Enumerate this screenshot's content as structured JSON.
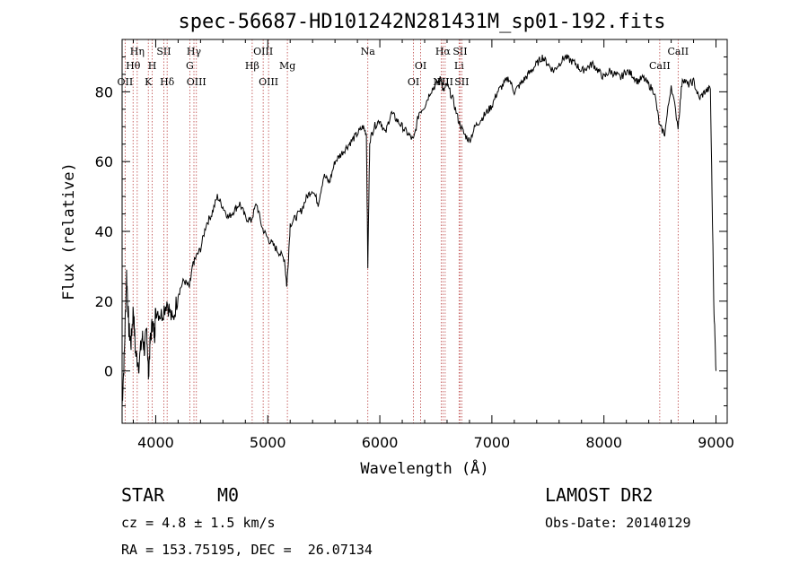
{
  "chart_data": {
    "type": "line",
    "title": "spec-56687-HD101242N281431M_sp01-192.fits",
    "xlabel": "Wavelength (Å)",
    "ylabel": "Flux (relative)",
    "xlim": [
      3700,
      9100
    ],
    "ylim": [
      -15,
      95
    ],
    "xticks": [
      "4000",
      "5000",
      "6000",
      "7000",
      "8000",
      "9000"
    ],
    "yticks": [
      "0",
      "20",
      "40",
      "60",
      "80"
    ],
    "grid": false,
    "series": [
      {
        "x": [
          3700,
          3720,
          3740,
          3760,
          3780,
          3800,
          3820,
          3850,
          3880,
          3900,
          3920,
          3935,
          3950,
          3970,
          3990,
          4000,
          4050,
          4100,
          4150,
          4200,
          4250,
          4300,
          4330,
          4350,
          4400,
          4450,
          4500,
          4550,
          4600,
          4650,
          4700,
          4750,
          4800,
          4850,
          4900,
          4950,
          5000,
          5050,
          5100,
          5150,
          5170,
          5200,
          5250,
          5300,
          5350,
          5400,
          5450,
          5500,
          5550,
          5600,
          5650,
          5700,
          5750,
          5800,
          5850,
          5880,
          5893,
          5910,
          5950,
          6000,
          6050,
          6100,
          6150,
          6200,
          6250,
          6300,
          6350,
          6400,
          6450,
          6500,
          6550,
          6563,
          6600,
          6650,
          6700,
          6750,
          6800,
          6850,
          6900,
          6950,
          7000,
          7050,
          7100,
          7150,
          7200,
          7250,
          7300,
          7350,
          7400,
          7450,
          7500,
          7550,
          7600,
          7650,
          7700,
          7750,
          7800,
          7850,
          7900,
          7950,
          8000,
          8050,
          8100,
          8150,
          8200,
          8250,
          8300,
          8350,
          8400,
          8450,
          8498,
          8542,
          8600,
          8662,
          8700,
          8750,
          8800,
          8850,
          8900,
          8950,
          8980,
          9000
        ],
        "values": [
          -10,
          5,
          28,
          12,
          8,
          18,
          5,
          2,
          10,
          6,
          12,
          -1,
          8,
          14,
          10,
          18,
          16,
          20,
          14,
          22,
          26,
          24,
          30,
          32,
          35,
          42,
          45,
          50,
          47,
          44,
          46,
          48,
          44,
          43,
          48,
          41,
          38,
          36,
          34,
          32,
          24,
          42,
          44,
          46,
          50,
          52,
          48,
          56,
          54,
          60,
          62,
          64,
          66,
          68,
          70,
          68,
          30,
          66,
          70,
          72,
          68,
          74,
          72,
          70,
          68,
          66,
          74,
          76,
          80,
          82,
          84,
          80,
          82,
          78,
          72,
          68,
          66,
          70,
          72,
          74,
          76,
          80,
          82,
          84,
          80,
          82,
          84,
          86,
          88,
          90,
          88,
          86,
          88,
          90,
          89,
          88,
          86,
          87,
          88,
          86,
          84,
          86,
          85,
          84,
          86,
          85,
          83,
          84,
          82,
          80,
          70,
          68,
          82,
          70,
          84,
          82,
          83,
          78,
          80,
          81,
          20,
          0
        ]
      }
    ],
    "lines": [
      {
        "w": 3727,
        "label": "OII",
        "row": 3
      },
      {
        "w": 3798,
        "label": "Hθ",
        "row": 2
      },
      {
        "w": 3835,
        "label": "Hη",
        "row": 1
      },
      {
        "w": 3934,
        "label": "K",
        "row": 3
      },
      {
        "w": 3969,
        "label": "H",
        "row": 2
      },
      {
        "w": 4072,
        "label": "SII",
        "row": 1
      },
      {
        "w": 4102,
        "label": "Hδ",
        "row": 3
      },
      {
        "w": 4304,
        "label": "G",
        "row": 2
      },
      {
        "w": 4341,
        "label": "Hγ",
        "row": 1
      },
      {
        "w": 4363,
        "label": "OIII",
        "row": 3
      },
      {
        "w": 4861,
        "label": "Hβ",
        "row": 2
      },
      {
        "w": 4959,
        "label": "OIII",
        "row": 1
      },
      {
        "w": 5007,
        "label": "OIII",
        "row": 3
      },
      {
        "w": 5175,
        "label": "Mg",
        "row": 2
      },
      {
        "w": 5893,
        "label": "Na",
        "row": 1
      },
      {
        "w": 6300,
        "label": "OI",
        "row": 3
      },
      {
        "w": 6364,
        "label": "OI",
        "row": 2
      },
      {
        "w": 6548,
        "label": "NII",
        "row": 3
      },
      {
        "w": 6563,
        "label": "Hα",
        "row": 1
      },
      {
        "w": 6583,
        "label": "NII",
        "row": 3
      },
      {
        "w": 6707,
        "label": "Li",
        "row": 2
      },
      {
        "w": 6716,
        "label": "SII",
        "row": 1
      },
      {
        "w": 6731,
        "label": "SII",
        "row": 3
      },
      {
        "w": 8498,
        "label": "CaII",
        "row": 2
      },
      {
        "w": 8662,
        "label": "CaII",
        "row": 1
      }
    ]
  },
  "info": {
    "class": "STAR",
    "subclass": "M0",
    "survey": "LAMOST DR2",
    "cz": "cz = 4.8 ± 1.5 km/s",
    "obsdate": "Obs-Date: 20140129",
    "coords": "RA = 153.75195, DEC =  26.07134"
  }
}
